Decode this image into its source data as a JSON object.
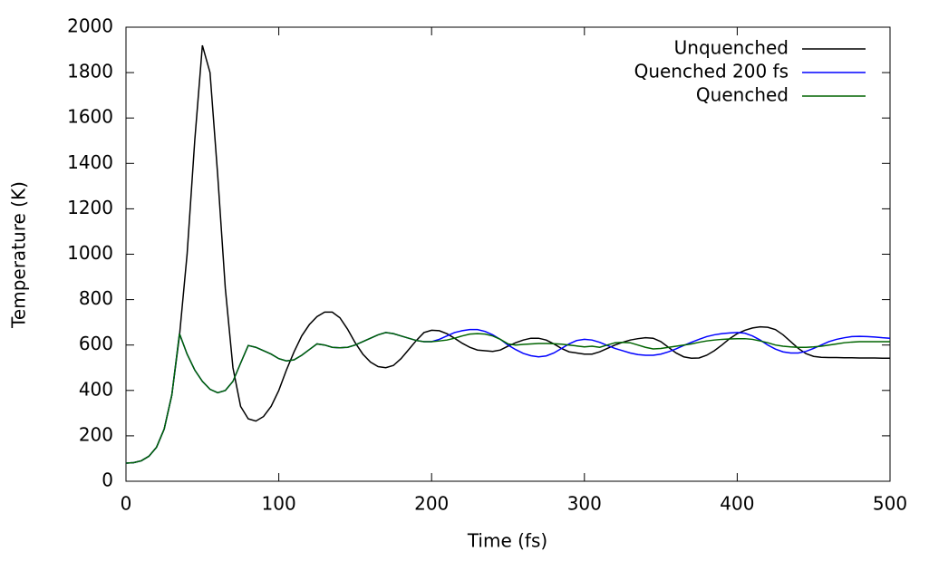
{
  "chart_data": {
    "type": "line",
    "xlabel": "Time (fs)",
    "ylabel": "Temperature (K)",
    "x": [
      0,
      5,
      10,
      15,
      20,
      25,
      30,
      35,
      40,
      45,
      50,
      55,
      60,
      65,
      70,
      75,
      80,
      85,
      90,
      95,
      100,
      105,
      110,
      115,
      120,
      125,
      130,
      135,
      140,
      145,
      150,
      155,
      160,
      165,
      170,
      175,
      180,
      185,
      190,
      195,
      200,
      205,
      210,
      215,
      220,
      225,
      230,
      235,
      240,
      245,
      250,
      255,
      260,
      265,
      270,
      275,
      280,
      285,
      290,
      295,
      300,
      305,
      310,
      315,
      320,
      325,
      330,
      335,
      340,
      345,
      350,
      355,
      360,
      365,
      370,
      375,
      380,
      385,
      390,
      395,
      400,
      405,
      410,
      415,
      420,
      425,
      430,
      435,
      440,
      445,
      450,
      455,
      460,
      465,
      470,
      475,
      480,
      485,
      490,
      495,
      500
    ],
    "series": [
      {
        "name": "Unquenched",
        "color": "#000000",
        "values": [
          80,
          82,
          90,
          110,
          150,
          230,
          380,
          640,
          1000,
          1500,
          1920,
          1800,
          1350,
          850,
          500,
          330,
          275,
          265,
          285,
          330,
          400,
          490,
          570,
          640,
          690,
          725,
          745,
          745,
          720,
          670,
          610,
          560,
          525,
          505,
          500,
          510,
          540,
          580,
          620,
          655,
          665,
          663,
          650,
          630,
          608,
          590,
          578,
          575,
          572,
          578,
          595,
          610,
          622,
          630,
          630,
          622,
          605,
          585,
          570,
          565,
          560,
          560,
          570,
          585,
          600,
          612,
          622,
          628,
          632,
          630,
          615,
          590,
          565,
          548,
          542,
          543,
          555,
          575,
          600,
          628,
          650,
          665,
          675,
          680,
          678,
          668,
          645,
          615,
          585,
          562,
          550,
          546,
          545,
          545,
          544,
          544,
          543,
          543,
          543,
          542,
          542
        ]
      },
      {
        "name": "Quenched 200 fs",
        "color": "#0000ff",
        "values": [
          80,
          82,
          90,
          110,
          150,
          230,
          380,
          650,
          560,
          490,
          440,
          405,
          390,
          400,
          440,
          520,
          598,
          590,
          575,
          560,
          540,
          530,
          535,
          555,
          580,
          605,
          600,
          590,
          588,
          590,
          600,
          615,
          630,
          645,
          655,
          650,
          640,
          630,
          620,
          615,
          615,
          625,
          640,
          655,
          663,
          668,
          668,
          660,
          645,
          625,
          600,
          580,
          563,
          553,
          548,
          552,
          565,
          585,
          605,
          620,
          625,
          622,
          612,
          598,
          585,
          575,
          565,
          558,
          555,
          555,
          560,
          570,
          583,
          598,
          612,
          625,
          637,
          645,
          650,
          653,
          655,
          652,
          640,
          622,
          600,
          582,
          570,
          565,
          565,
          572,
          585,
          600,
          615,
          625,
          632,
          637,
          638,
          637,
          635,
          632,
          630
        ]
      },
      {
        "name": "Quenched",
        "color": "#006400",
        "values": [
          80,
          82,
          90,
          110,
          150,
          230,
          380,
          650,
          560,
          490,
          440,
          405,
          390,
          400,
          440,
          520,
          598,
          590,
          575,
          560,
          540,
          530,
          535,
          555,
          580,
          605,
          600,
          590,
          588,
          590,
          600,
          615,
          630,
          645,
          655,
          650,
          640,
          630,
          620,
          615,
          615,
          618,
          622,
          630,
          640,
          648,
          650,
          648,
          640,
          625,
          605,
          600,
          603,
          605,
          607,
          607,
          606,
          604,
          600,
          596,
          592,
          595,
          590,
          600,
          610,
          612,
          610,
          600,
          590,
          583,
          585,
          590,
          595,
          600,
          605,
          612,
          618,
          622,
          625,
          627,
          628,
          628,
          625,
          618,
          610,
          600,
          595,
          592,
          590,
          590,
          592,
          595,
          600,
          605,
          610,
          613,
          615,
          615,
          615,
          615,
          615
        ]
      }
    ],
    "xlim": [
      0,
      500
    ],
    "xticks": [
      0,
      100,
      200,
      300,
      400,
      500
    ],
    "ylim": [
      0,
      2000
    ],
    "yticks": [
      0,
      200,
      400,
      600,
      800,
      1000,
      1200,
      1400,
      1600,
      1800,
      2000
    ],
    "legend": "upper right"
  }
}
